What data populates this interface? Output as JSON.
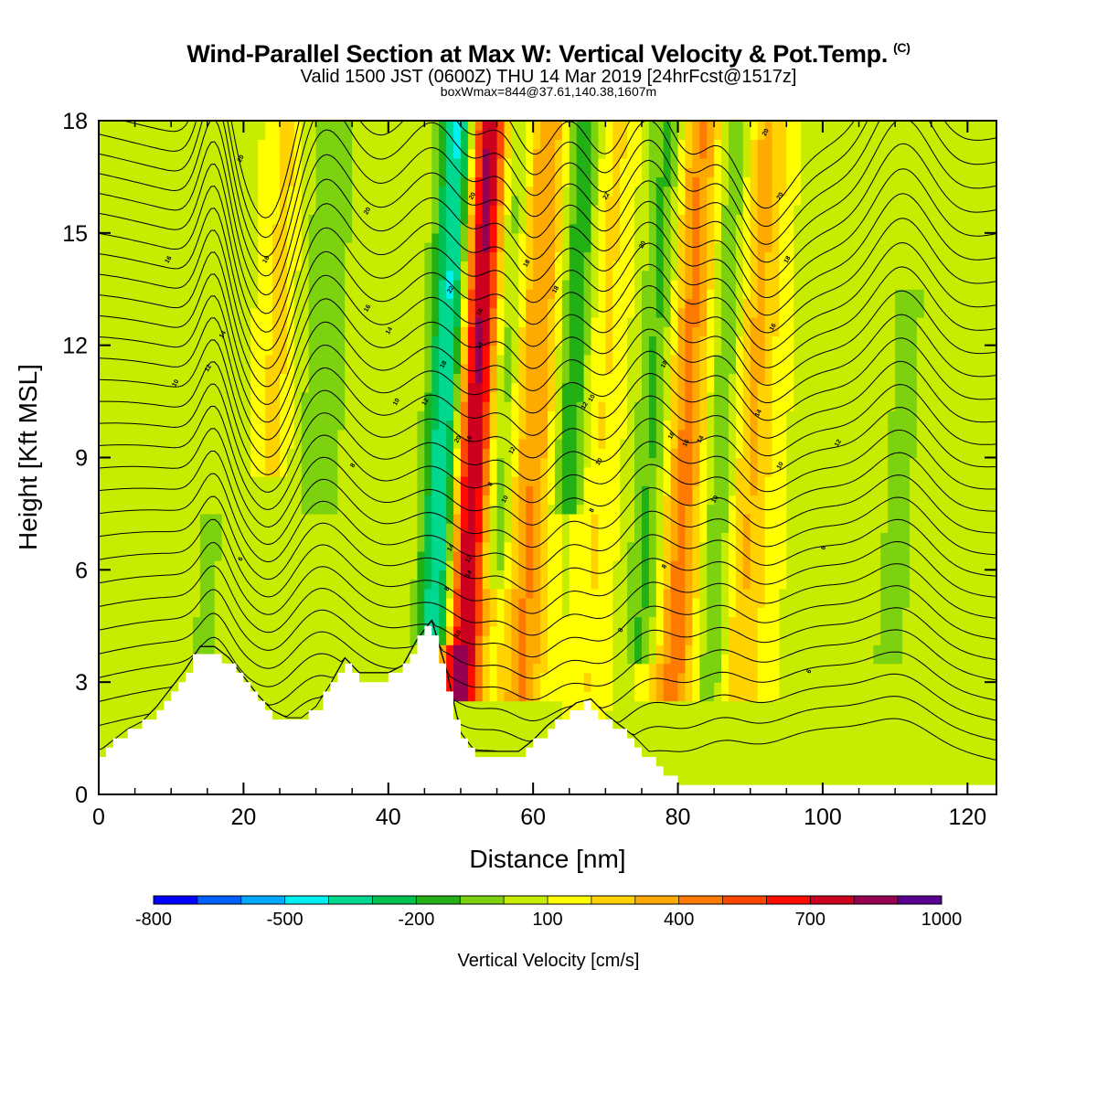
{
  "header": {
    "title": "Wind-Parallel Section at Max W: Vertical Velocity & Pot.Temp.",
    "title_mark": "(C)",
    "valid_line": "Valid 1500 JST (0600Z) THU 14 Mar 2019 [24hrFcst@1517z]",
    "box_line": "boxWmax=844@37.61,140.38,1607m"
  },
  "chart_data": {
    "type": "heatmap",
    "title": "Wind-Parallel Section at Max W: Vertical Velocity & Pot.Temp.",
    "xlabel": "Distance [nm]",
    "ylabel": "Height [Kft MSL]",
    "xlim": [
      0,
      124
    ],
    "ylim": [
      0,
      18
    ],
    "xticks": [
      0,
      20,
      40,
      60,
      80,
      100,
      120
    ],
    "yticks": [
      0,
      3,
      6,
      9,
      12,
      15,
      18
    ],
    "colorbar": {
      "label": "Vertical Velocity [cm/s]",
      "placement": "bottom",
      "levels": [
        -800,
        -700,
        -600,
        -500,
        -400,
        -300,
        -200,
        -100,
        0,
        100,
        200,
        300,
        400,
        500,
        600,
        700,
        800,
        900,
        1000
      ],
      "tick_labels": [
        "-800",
        "-500",
        "-200",
        "100",
        "400",
        "700",
        "1000"
      ],
      "colors": [
        "#0000ff",
        "#0060ff",
        "#00a8ff",
        "#00f0f0",
        "#00d890",
        "#00c050",
        "#22b014",
        "#7cd20e",
        "#c8ec00",
        "#ffff00",
        "#ffd200",
        "#ffaa00",
        "#ff7a00",
        "#ff4600",
        "#ff0a00",
        "#cc001e",
        "#960050",
        "#5a0090"
      ]
    },
    "terrain": {
      "x": [
        0,
        2,
        4,
        6,
        8,
        10,
        12,
        14,
        16,
        18,
        20,
        22,
        24,
        26,
        28,
        30,
        32,
        34,
        36,
        38,
        40,
        42,
        44,
        46,
        48,
        50,
        52,
        54,
        56,
        58,
        60,
        62,
        64,
        66,
        68,
        70,
        72,
        74,
        76,
        78,
        80,
        82,
        124
      ],
      "height_kft": [
        1.0,
        1.3,
        1.6,
        1.8,
        2.2,
        2.7,
        3.2,
        3.8,
        3.8,
        3.5,
        3.0,
        2.5,
        2.1,
        1.9,
        1.9,
        2.2,
        2.8,
        3.5,
        3.1,
        3.1,
        3.1,
        3.3,
        4.0,
        4.5,
        3.2,
        1.5,
        1.0,
        1.0,
        1.0,
        1.0,
        1.3,
        1.7,
        2.0,
        2.3,
        2.4,
        2.0,
        1.7,
        1.4,
        1.0,
        0.6,
        0.3,
        0.3,
        0.3
      ]
    },
    "velocity_features": [
      {
        "x": 48.0,
        "width_nm": 2.6,
        "w": -560,
        "y_range": [
          4.5,
          18
        ]
      },
      {
        "x": 51.5,
        "width_nm": 2.8,
        "w": 844,
        "y_range": [
          3.0,
          18
        ]
      },
      {
        "x": 55.5,
        "width_nm": 2.0,
        "w": -220,
        "y_range": [
          6.0,
          18
        ]
      },
      {
        "x": 60.0,
        "width_nm": 3.0,
        "w": 320,
        "y_range": [
          3.0,
          18
        ]
      },
      {
        "x": 65.0,
        "width_nm": 2.2,
        "w": -260,
        "y_range": [
          8.0,
          18
        ]
      },
      {
        "x": 69.0,
        "width_nm": 3.0,
        "w": 170,
        "y_range": [
          2.0,
          18
        ]
      },
      {
        "x": 76.5,
        "width_nm": 2.5,
        "w": -230,
        "y_range": [
          4.0,
          18
        ]
      },
      {
        "x": 81.0,
        "width_nm": 3.0,
        "w": 380,
        "y_range": [
          3.0,
          18
        ]
      },
      {
        "x": 86.0,
        "width_nm": 2.2,
        "w": -160,
        "y_range": [
          3.0,
          18
        ]
      },
      {
        "x": 90.0,
        "width_nm": 3.0,
        "w": 250,
        "y_range": [
          3.0,
          18
        ]
      },
      {
        "x": 111.0,
        "width_nm": 2.5,
        "w": -130,
        "y_range": [
          4.0,
          13
        ]
      },
      {
        "x": 30.5,
        "width_nm": 2.5,
        "w": -130,
        "y_range": [
          8.0,
          18
        ]
      },
      {
        "x": 24.0,
        "width_nm": 2.2,
        "w": 150,
        "y_range": [
          9.0,
          18
        ]
      },
      {
        "x": 16.0,
        "width_nm": 1.2,
        "w": -120,
        "y_range": [
          3.0,
          7.0
        ]
      }
    ],
    "theta_contours": {
      "levels": [
        4,
        6,
        8,
        10,
        12,
        14,
        16,
        18,
        20,
        22
      ],
      "contour_labels": [
        {
          "x": 19.5,
          "y": 17.0,
          "text": "20"
        },
        {
          "x": 37,
          "y": 15.6,
          "text": "20"
        },
        {
          "x": 9.5,
          "y": 14.3,
          "text": "16"
        },
        {
          "x": 23,
          "y": 14.3,
          "text": "16"
        },
        {
          "x": 37,
          "y": 13.0,
          "text": "16"
        },
        {
          "x": 17,
          "y": 12.3,
          "text": "14"
        },
        {
          "x": 40,
          "y": 12.4,
          "text": "14"
        },
        {
          "x": 15,
          "y": 11.4,
          "text": "12"
        },
        {
          "x": 10.5,
          "y": 11.0,
          "text": "10"
        },
        {
          "x": 41,
          "y": 10.5,
          "text": "10"
        },
        {
          "x": 45,
          "y": 10.5,
          "text": "12"
        },
        {
          "x": 35,
          "y": 8.8,
          "text": "8"
        },
        {
          "x": 19.5,
          "y": 6.3,
          "text": "6"
        },
        {
          "x": 48.5,
          "y": 13.5,
          "text": "22"
        },
        {
          "x": 47.5,
          "y": 11.5,
          "text": "18"
        },
        {
          "x": 49.5,
          "y": 9.5,
          "text": "20"
        },
        {
          "x": 48.5,
          "y": 6.6,
          "text": "14"
        },
        {
          "x": 48,
          "y": 5.5,
          "text": "8"
        },
        {
          "x": 49.5,
          "y": 4.3,
          "text": "10"
        },
        {
          "x": 51.5,
          "y": 16.0,
          "text": "20"
        },
        {
          "x": 52.5,
          "y": 12.9,
          "text": "16"
        },
        {
          "x": 52.5,
          "y": 12.0,
          "text": "14"
        },
        {
          "x": 51,
          "y": 9.5,
          "text": "16"
        },
        {
          "x": 51,
          "y": 6.3,
          "text": "12"
        },
        {
          "x": 51,
          "y": 5.9,
          "text": "14"
        },
        {
          "x": 54,
          "y": 8.3,
          "text": "8"
        },
        {
          "x": 56,
          "y": 7.9,
          "text": "10"
        },
        {
          "x": 57,
          "y": 9.2,
          "text": "12"
        },
        {
          "x": 59,
          "y": 14.2,
          "text": "18"
        },
        {
          "x": 63,
          "y": 13.5,
          "text": "18"
        },
        {
          "x": 70,
          "y": 16.0,
          "text": "22"
        },
        {
          "x": 75,
          "y": 14.7,
          "text": "20"
        },
        {
          "x": 67,
          "y": 10.4,
          "text": "12"
        },
        {
          "x": 68,
          "y": 10.6,
          "text": "10"
        },
        {
          "x": 69,
          "y": 8.9,
          "text": "10"
        },
        {
          "x": 68,
          "y": 7.6,
          "text": "8"
        },
        {
          "x": 78,
          "y": 11.5,
          "text": "18"
        },
        {
          "x": 79,
          "y": 9.6,
          "text": "16"
        },
        {
          "x": 81,
          "y": 9.4,
          "text": "16"
        },
        {
          "x": 83,
          "y": 9.5,
          "text": "14"
        },
        {
          "x": 85,
          "y": 7.9,
          "text": "10"
        },
        {
          "x": 78,
          "y": 6.1,
          "text": "8"
        },
        {
          "x": 72,
          "y": 4.4,
          "text": "8"
        },
        {
          "x": 92,
          "y": 17.7,
          "text": "20"
        },
        {
          "x": 94,
          "y": 16.0,
          "text": "20"
        },
        {
          "x": 95,
          "y": 14.3,
          "text": "18"
        },
        {
          "x": 93,
          "y": 12.5,
          "text": "16"
        },
        {
          "x": 91,
          "y": 10.2,
          "text": "14"
        },
        {
          "x": 94,
          "y": 8.8,
          "text": "10"
        },
        {
          "x": 102,
          "y": 9.4,
          "text": "12"
        },
        {
          "x": 100,
          "y": 6.6,
          "text": "6"
        },
        {
          "x": 98,
          "y": 3.3,
          "text": "6"
        }
      ]
    },
    "grid": false
  }
}
